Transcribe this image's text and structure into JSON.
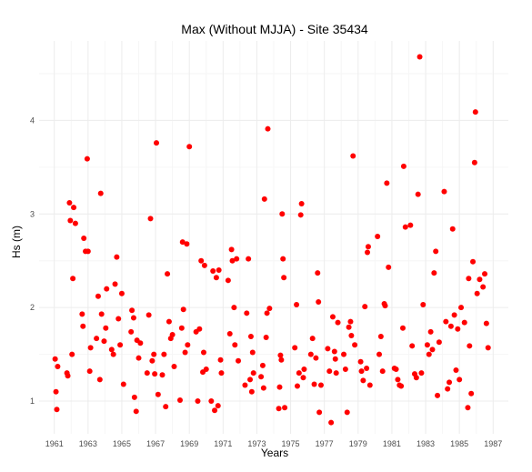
{
  "chart_data": {
    "type": "scatter",
    "title": "Max (Without MJJA) - Site  35434",
    "xlabel": "Years",
    "ylabel": "Hs (m)",
    "xlim": [
      1960.1,
      1987.9
    ],
    "ylim": [
      0.65,
      4.85
    ],
    "x_ticks": [
      1961,
      1963,
      1965,
      1967,
      1969,
      1971,
      1973,
      1975,
      1977,
      1979,
      1981,
      1983,
      1985,
      1987
    ],
    "x_tick_labels": [
      "1961",
      "1963",
      "1965",
      "1967",
      "1969",
      "1971",
      "1973",
      "1975",
      "1977",
      "1979",
      "1981",
      "1983",
      "1985",
      "1987"
    ],
    "y_ticks": [
      1,
      2,
      3,
      4
    ],
    "y_tick_labels": [
      "1",
      "2",
      "3",
      "4"
    ],
    "grid": true,
    "point_color": "#ff0000",
    "background_color": "#ffffff",
    "grid_color": "#ececec",
    "points": [
      [
        1961.05,
        1.45
      ],
      [
        1961.1,
        1.1
      ],
      [
        1961.15,
        0.91
      ],
      [
        1961.2,
        1.37
      ],
      [
        1961.75,
        1.3
      ],
      [
        1961.8,
        1.27
      ],
      [
        1961.9,
        3.12
      ],
      [
        1961.95,
        2.93
      ],
      [
        1962.05,
        1.5
      ],
      [
        1962.1,
        2.31
      ],
      [
        1962.15,
        3.07
      ],
      [
        1962.25,
        2.9
      ],
      [
        1962.65,
        1.93
      ],
      [
        1962.7,
        1.8
      ],
      [
        1962.75,
        2.74
      ],
      [
        1962.85,
        2.6
      ],
      [
        1962.95,
        3.59
      ],
      [
        1963.0,
        2.6
      ],
      [
        1963.1,
        1.32
      ],
      [
        1963.15,
        1.57
      ],
      [
        1963.5,
        1.67
      ],
      [
        1963.6,
        2.12
      ],
      [
        1963.75,
        3.22
      ],
      [
        1963.7,
        1.23
      ],
      [
        1963.8,
        1.93
      ],
      [
        1963.95,
        1.64
      ],
      [
        1964.05,
        1.78
      ],
      [
        1964.1,
        2.2
      ],
      [
        1964.4,
        1.55
      ],
      [
        1964.5,
        1.5
      ],
      [
        1964.6,
        2.25
      ],
      [
        1964.7,
        2.54
      ],
      [
        1964.8,
        1.88
      ],
      [
        1964.9,
        1.6
      ],
      [
        1965.0,
        2.15
      ],
      [
        1965.1,
        1.18
      ],
      [
        1965.55,
        1.74
      ],
      [
        1965.6,
        1.97
      ],
      [
        1965.7,
        1.89
      ],
      [
        1965.75,
        1.04
      ],
      [
        1965.85,
        0.89
      ],
      [
        1965.9,
        1.65
      ],
      [
        1966.0,
        1.46
      ],
      [
        1966.1,
        1.62
      ],
      [
        1966.5,
        1.3
      ],
      [
        1966.6,
        1.92
      ],
      [
        1966.7,
        2.95
      ],
      [
        1966.8,
        1.43
      ],
      [
        1966.9,
        1.5
      ],
      [
        1966.95,
        1.29
      ],
      [
        1967.05,
        3.76
      ],
      [
        1967.15,
        1.07
      ],
      [
        1967.4,
        1.28
      ],
      [
        1967.5,
        1.5
      ],
      [
        1967.6,
        0.94
      ],
      [
        1967.7,
        2.36
      ],
      [
        1967.8,
        1.85
      ],
      [
        1967.9,
        1.67
      ],
      [
        1968.0,
        1.71
      ],
      [
        1968.1,
        1.37
      ],
      [
        1968.45,
        1.01
      ],
      [
        1968.55,
        1.78
      ],
      [
        1968.6,
        2.7
      ],
      [
        1968.65,
        1.98
      ],
      [
        1968.75,
        1.52
      ],
      [
        1968.85,
        2.68
      ],
      [
        1968.9,
        1.6
      ],
      [
        1969.0,
        3.72
      ],
      [
        1969.4,
        1.74
      ],
      [
        1969.5,
        1.0
      ],
      [
        1969.6,
        1.77
      ],
      [
        1969.7,
        2.5
      ],
      [
        1969.8,
        1.31
      ],
      [
        1969.85,
        1.52
      ],
      [
        1969.9,
        2.45
      ],
      [
        1970.0,
        1.34
      ],
      [
        1970.3,
        1.0
      ],
      [
        1970.4,
        2.39
      ],
      [
        1970.5,
        0.9
      ],
      [
        1970.6,
        2.32
      ],
      [
        1970.7,
        0.95
      ],
      [
        1970.75,
        2.4
      ],
      [
        1970.85,
        1.44
      ],
      [
        1970.9,
        1.3
      ],
      [
        1971.3,
        2.29
      ],
      [
        1971.4,
        1.72
      ],
      [
        1971.5,
        2.62
      ],
      [
        1971.55,
        2.5
      ],
      [
        1971.65,
        2.0
      ],
      [
        1971.7,
        1.6
      ],
      [
        1971.8,
        2.52
      ],
      [
        1971.9,
        1.43
      ],
      [
        1972.3,
        1.17
      ],
      [
        1972.4,
        1.94
      ],
      [
        1972.5,
        2.52
      ],
      [
        1972.6,
        1.23
      ],
      [
        1972.65,
        1.69
      ],
      [
        1972.7,
        1.1
      ],
      [
        1972.75,
        1.52
      ],
      [
        1972.8,
        1.3
      ],
      [
        1973.25,
        1.26
      ],
      [
        1973.35,
        1.38
      ],
      [
        1973.4,
        1.14
      ],
      [
        1973.45,
        3.16
      ],
      [
        1973.55,
        1.68
      ],
      [
        1973.6,
        1.94
      ],
      [
        1973.65,
        3.91
      ],
      [
        1973.75,
        1.99
      ],
      [
        1974.3,
        0.92
      ],
      [
        1974.35,
        1.15
      ],
      [
        1974.4,
        1.49
      ],
      [
        1974.45,
        1.44
      ],
      [
        1974.5,
        3.0
      ],
      [
        1974.55,
        2.52
      ],
      [
        1974.6,
        2.32
      ],
      [
        1974.65,
        0.93
      ],
      [
        1975.25,
        1.57
      ],
      [
        1975.35,
        2.03
      ],
      [
        1975.4,
        1.16
      ],
      [
        1975.5,
        1.3
      ],
      [
        1975.6,
        2.99
      ],
      [
        1975.65,
        3.11
      ],
      [
        1975.75,
        1.25
      ],
      [
        1975.8,
        1.34
      ],
      [
        1976.2,
        1.5
      ],
      [
        1976.3,
        1.67
      ],
      [
        1976.4,
        1.18
      ],
      [
        1976.5,
        1.46
      ],
      [
        1976.6,
        2.37
      ],
      [
        1976.65,
        2.06
      ],
      [
        1976.7,
        0.88
      ],
      [
        1976.8,
        1.17
      ],
      [
        1977.2,
        1.56
      ],
      [
        1977.3,
        1.32
      ],
      [
        1977.4,
        0.77
      ],
      [
        1977.5,
        1.9
      ],
      [
        1977.6,
        1.53
      ],
      [
        1977.65,
        1.45
      ],
      [
        1977.7,
        1.3
      ],
      [
        1977.8,
        1.84
      ],
      [
        1978.15,
        1.5
      ],
      [
        1978.25,
        1.34
      ],
      [
        1978.35,
        0.88
      ],
      [
        1978.45,
        1.79
      ],
      [
        1978.55,
        1.85
      ],
      [
        1978.6,
        1.7
      ],
      [
        1978.7,
        3.62
      ],
      [
        1978.8,
        1.6
      ],
      [
        1979.15,
        1.42
      ],
      [
        1979.2,
        1.32
      ],
      [
        1979.3,
        1.22
      ],
      [
        1979.4,
        2.01
      ],
      [
        1979.5,
        1.35
      ],
      [
        1979.55,
        2.59
      ],
      [
        1979.6,
        2.65
      ],
      [
        1979.7,
        1.17
      ],
      [
        1980.15,
        2.76
      ],
      [
        1980.25,
        1.5
      ],
      [
        1980.35,
        1.69
      ],
      [
        1980.45,
        1.32
      ],
      [
        1980.55,
        2.04
      ],
      [
        1980.6,
        2.02
      ],
      [
        1980.7,
        3.33
      ],
      [
        1980.8,
        2.43
      ],
      [
        1981.15,
        1.35
      ],
      [
        1981.25,
        1.34
      ],
      [
        1981.35,
        1.23
      ],
      [
        1981.45,
        1.17
      ],
      [
        1981.55,
        1.16
      ],
      [
        1981.65,
        1.78
      ],
      [
        1981.7,
        3.51
      ],
      [
        1981.8,
        2.86
      ],
      [
        1982.1,
        2.88
      ],
      [
        1982.2,
        1.59
      ],
      [
        1982.35,
        1.29
      ],
      [
        1982.45,
        1.25
      ],
      [
        1982.55,
        3.21
      ],
      [
        1982.65,
        4.68
      ],
      [
        1982.75,
        1.3
      ],
      [
        1982.85,
        2.03
      ],
      [
        1983.1,
        1.6
      ],
      [
        1983.2,
        1.5
      ],
      [
        1983.3,
        1.74
      ],
      [
        1983.4,
        1.55
      ],
      [
        1983.5,
        2.37
      ],
      [
        1983.6,
        2.6
      ],
      [
        1983.7,
        1.06
      ],
      [
        1983.8,
        1.63
      ],
      [
        1984.1,
        3.24
      ],
      [
        1984.2,
        1.85
      ],
      [
        1984.3,
        1.13
      ],
      [
        1984.4,
        1.2
      ],
      [
        1984.5,
        1.8
      ],
      [
        1984.6,
        2.84
      ],
      [
        1984.7,
        1.92
      ],
      [
        1984.8,
        1.33
      ],
      [
        1984.9,
        1.77
      ],
      [
        1985.0,
        1.23
      ],
      [
        1985.1,
        2.0
      ],
      [
        1985.3,
        1.84
      ],
      [
        1985.5,
        0.93
      ],
      [
        1985.55,
        2.31
      ],
      [
        1985.6,
        1.59
      ],
      [
        1985.7,
        1.08
      ],
      [
        1985.8,
        2.49
      ],
      [
        1985.9,
        3.55
      ],
      [
        1985.95,
        4.09
      ],
      [
        1986.05,
        2.15
      ],
      [
        1986.2,
        2.3
      ],
      [
        1986.4,
        2.22
      ],
      [
        1986.5,
        2.36
      ],
      [
        1986.6,
        1.83
      ],
      [
        1986.7,
        1.57
      ]
    ]
  }
}
